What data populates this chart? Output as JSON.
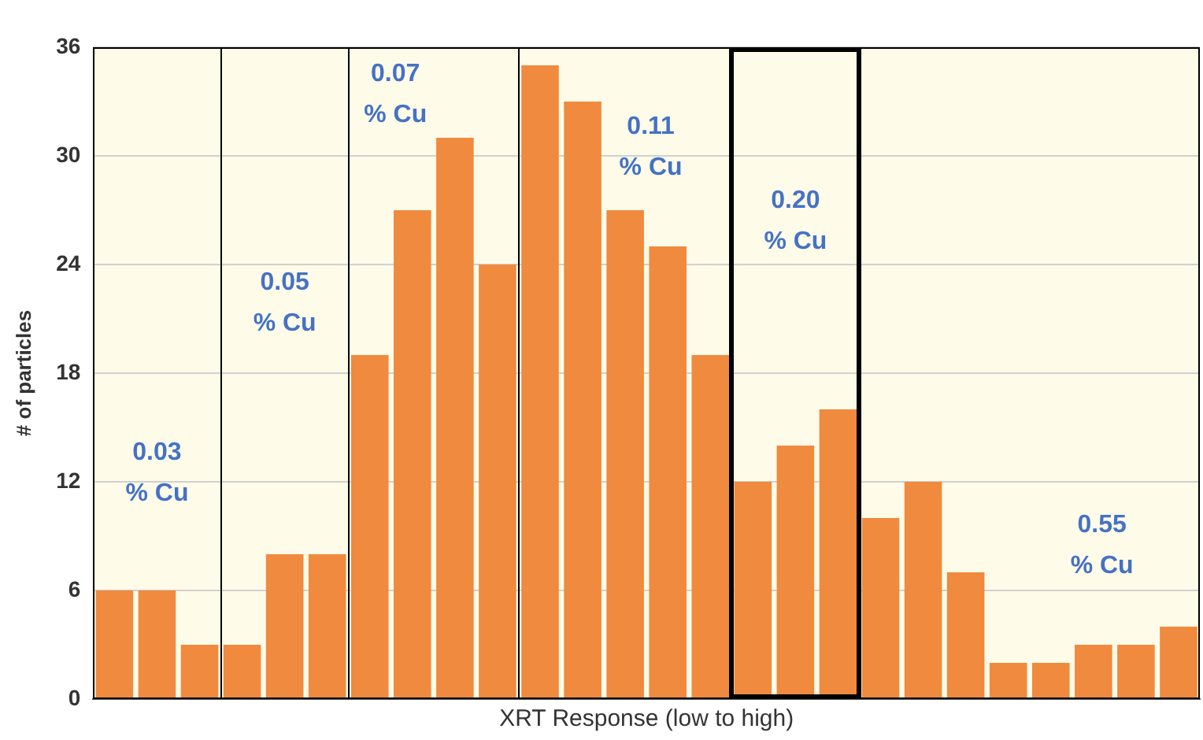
{
  "chart_data": {
    "type": "bar",
    "xlabel": "XRT Response (low to high)",
    "ylabel": "# of particles",
    "categories": [
      null,
      null,
      null,
      null,
      null,
      null,
      null,
      null,
      null,
      null,
      null,
      null,
      null,
      null,
      null,
      null,
      null,
      null,
      null,
      null,
      null,
      null,
      null,
      null,
      null,
      null
    ],
    "values": [
      6,
      6,
      3,
      3,
      8,
      8,
      19,
      27,
      31,
      24,
      35,
      33,
      27,
      25,
      19,
      12,
      14,
      16,
      10,
      12,
      7,
      2,
      2,
      3,
      3,
      4
    ],
    "color": "#f08a3e",
    "ylim": [
      0,
      36
    ],
    "yticks": [
      0,
      6,
      12,
      18,
      24,
      30,
      36
    ],
    "grid": "y",
    "tick_labels": "y",
    "annotations": [
      "0.03 % Cu",
      "0.05 % Cu",
      "0.07 % Cu",
      "0.11 % Cu",
      "0.20 % Cu",
      "0.55 % Cu"
    ]
  }
}
